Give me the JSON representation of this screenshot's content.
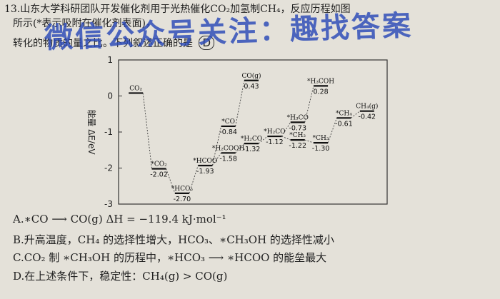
{
  "question": {
    "line1": "13.山东大学科研团队开发催化剂用于光热催化CO₂加氢制CH₄，反应历程如图",
    "line2": "所示(*表示吸附在催化剂表面)，",
    "line3": "转化的物质的量之比。下列叙述正确的是",
    "answer_mark": "D",
    "watermark": "微信公众号关注：趣找答案"
  },
  "options": [
    {
      "label": "A.",
      "text": "∗CO ⟶ CO(g)  ΔH = −119.4 kJ·mol⁻¹"
    },
    {
      "label": "B.",
      "text": "升高温度，CH₄ 的选择性增大，HCO₃、∗CH₃OH 的选择性减小"
    },
    {
      "label": "C.",
      "text": "CO₂ 制 ∗CH₃OH 的历程中，∗HCO₃ ⟶ ∗HCOO 的能垒最大"
    },
    {
      "label": "D.",
      "text": "在上述条件下，稳定性：CH₄(g) > CO(g)"
    }
  ],
  "chart_data": {
    "type": "line",
    "ylabel": "能量 ΔE/eV",
    "ylim": [
      -3,
      1
    ],
    "yticks": [
      1,
      0,
      -1,
      -2,
      -3
    ],
    "levels": [
      {
        "id": "co2",
        "species": "CO₂",
        "value": null,
        "x": 1
      },
      {
        "id": "s_co2",
        "species": "*CO₂",
        "value": -2.02,
        "x": 2
      },
      {
        "id": "s_hco3",
        "species": "*HCO₃",
        "value": -2.7,
        "x": 3
      },
      {
        "id": "s_hcoo",
        "species": "*HCOO",
        "value": -1.93,
        "x": 4
      },
      {
        "id": "s_h2cooh",
        "species": "*H₂COOH",
        "value": -1.58,
        "x": 5
      },
      {
        "id": "s_co",
        "species": "*CO",
        "value": -0.84,
        "x": 5
      },
      {
        "id": "co_g",
        "species": "CO(g)",
        "value": 0.43,
        "x": 6
      },
      {
        "id": "s_h2co",
        "species": "*H₂CO",
        "value": -1.32,
        "x": 6
      },
      {
        "id": "s_h2co_b",
        "species": "*H₂CO",
        "value": -1.12,
        "x": 7
      },
      {
        "id": "s_h3co",
        "species": "*H₃CO",
        "value": -0.73,
        "x": 8
      },
      {
        "id": "s_ch2",
        "species": "*CH₂",
        "value": -1.22,
        "x": 8
      },
      {
        "id": "s_h3coh",
        "species": "*H₃COH",
        "value": 0.28,
        "x": 9
      },
      {
        "id": "s_ch3",
        "species": "*CH₃",
        "value": -1.3,
        "x": 9
      },
      {
        "id": "s_ch4",
        "species": "*CH₄",
        "value": -0.61,
        "x": 10
      },
      {
        "id": "ch4_g",
        "species": "CH₄(g)",
        "value": -0.42,
        "x": 11
      }
    ],
    "connections": [
      [
        "co2",
        "s_co2"
      ],
      [
        "s_co2",
        "s_hco3"
      ],
      [
        "s_hco3",
        "s_hcoo"
      ],
      [
        "s_hcoo",
        "s_h2cooh"
      ],
      [
        "s_hcoo",
        "s_co"
      ],
      [
        "s_co",
        "co_g"
      ],
      [
        "s_h2cooh",
        "s_h2co"
      ],
      [
        "s_h2co",
        "s_h2co_b"
      ],
      [
        "s_h2co_b",
        "s_h3co"
      ],
      [
        "s_h2co_b",
        "s_ch2"
      ],
      [
        "s_h3co",
        "s_h3coh"
      ],
      [
        "s_ch2",
        "s_ch3"
      ],
      [
        "s_ch3",
        "s_ch4"
      ],
      [
        "s_ch4",
        "ch4_g"
      ]
    ]
  }
}
